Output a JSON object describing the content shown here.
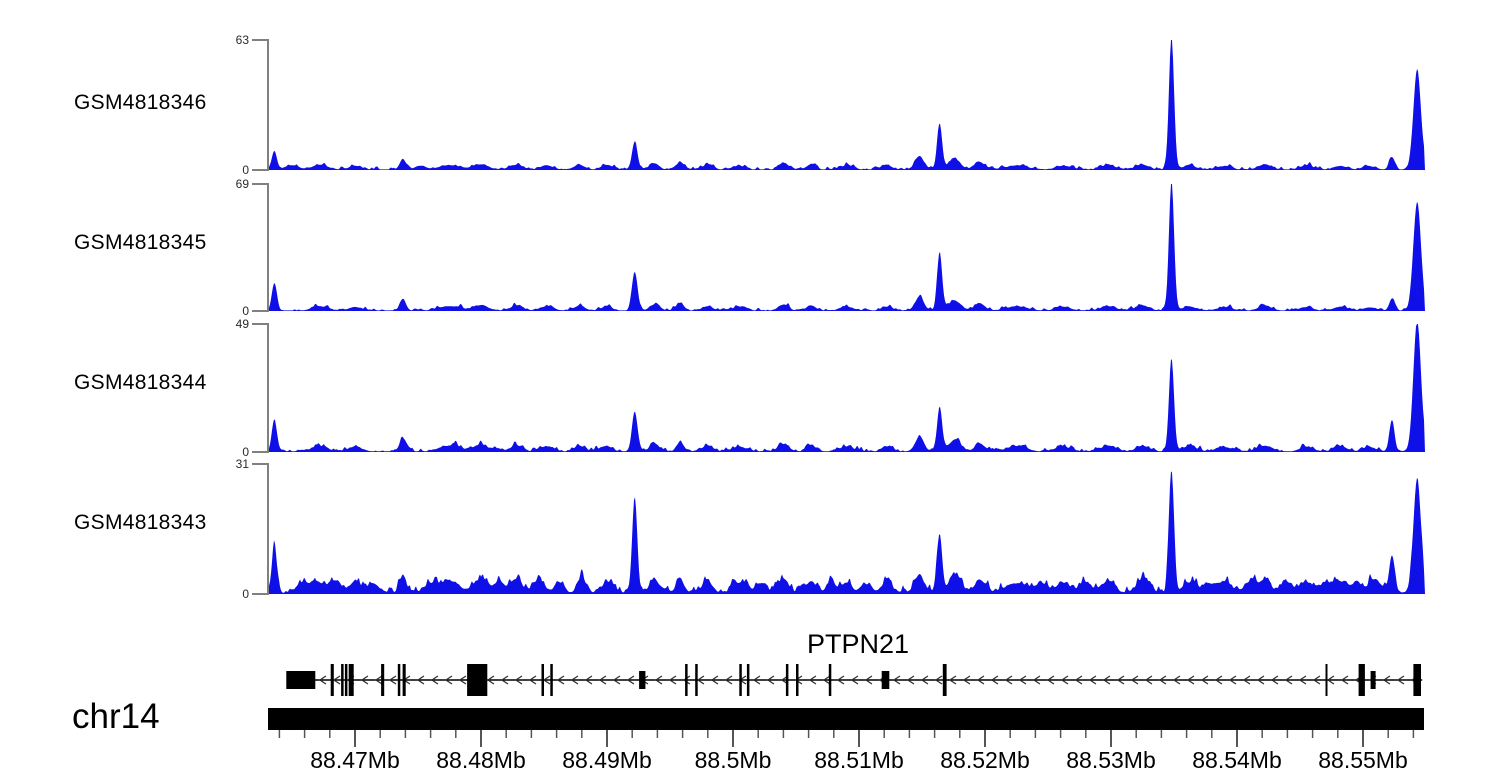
{
  "figure": {
    "chromosome_label": "chr14",
    "gene_label": "PTPN21"
  },
  "chart_data": {
    "type": "area",
    "x_units": "Mb",
    "x_range": [
      88.4631,
      88.5549
    ],
    "grid": false,
    "legend": "none",
    "signal_color": "#0f0fe8",
    "axis_color": "#808080",
    "axis": {
      "major_ticks": [
        {
          "pos": 88.47,
          "label": "88.47Mb"
        },
        {
          "pos": 88.48,
          "label": "88.48Mb"
        },
        {
          "pos": 88.49,
          "label": "88.49Mb"
        },
        {
          "pos": 88.5,
          "label": "88.5Mb"
        },
        {
          "pos": 88.51,
          "label": "88.51Mb"
        },
        {
          "pos": 88.52,
          "label": "88.52Mb"
        },
        {
          "pos": 88.53,
          "label": "88.53Mb"
        },
        {
          "pos": 88.54,
          "label": "88.54Mb"
        },
        {
          "pos": 88.55,
          "label": "88.55Mb"
        }
      ],
      "minor_tick_step": 0.002,
      "minor_tick_start": 88.464,
      "minor_tick_end": 88.554
    },
    "tracks": [
      {
        "name": "GSM4818346",
        "ymax": 63,
        "ymin": 0,
        "seed": 11,
        "noise": 0.9,
        "peaks": [
          [
            88.4636,
            9,
            0.2
          ],
          [
            88.465,
            2,
            0.5
          ],
          [
            88.4672,
            2.2,
            0.6
          ],
          [
            88.47,
            1.8,
            0.5
          ],
          [
            88.4738,
            5,
            0.25
          ],
          [
            88.4752,
            1.8,
            0.4
          ],
          [
            88.4775,
            2.2,
            0.8
          ],
          [
            88.48,
            2.6,
            0.6
          ],
          [
            88.4828,
            2.2,
            0.5
          ],
          [
            88.4852,
            2,
            0.5
          ],
          [
            88.4878,
            2.4,
            0.4
          ],
          [
            88.49,
            2.2,
            0.4
          ],
          [
            88.4922,
            13,
            0.22
          ],
          [
            88.4938,
            3,
            0.35
          ],
          [
            88.4958,
            3.6,
            0.3
          ],
          [
            88.498,
            2.2,
            0.4
          ],
          [
            88.5005,
            1.8,
            0.5
          ],
          [
            88.504,
            3,
            0.4
          ],
          [
            88.5062,
            2.6,
            0.35
          ],
          [
            88.509,
            1.8,
            0.5
          ],
          [
            88.5122,
            2,
            0.4
          ],
          [
            88.5148,
            6.5,
            0.35
          ],
          [
            88.5164,
            22,
            0.2
          ],
          [
            88.5176,
            5,
            0.45
          ],
          [
            88.5196,
            3.5,
            0.4
          ],
          [
            88.5225,
            2,
            0.8
          ],
          [
            88.5262,
            1.8,
            0.6
          ],
          [
            88.5298,
            2,
            0.6
          ],
          [
            88.5325,
            2.4,
            0.5
          ],
          [
            88.5348,
            64,
            0.2
          ],
          [
            88.5362,
            2,
            0.5
          ],
          [
            88.539,
            1.6,
            0.6
          ],
          [
            88.5422,
            2.4,
            0.5
          ],
          [
            88.5455,
            1.8,
            0.5
          ],
          [
            88.5482,
            1.8,
            0.5
          ],
          [
            88.5505,
            1.6,
            0.5
          ],
          [
            88.5523,
            6,
            0.22
          ],
          [
            88.5543,
            48,
            0.3
          ]
        ]
      },
      {
        "name": "GSM4818345",
        "ymax": 69,
        "ymin": 0,
        "seed": 22,
        "noise": 1.0,
        "peaks": [
          [
            88.4636,
            15,
            0.2
          ],
          [
            88.4672,
            2.4,
            0.6
          ],
          [
            88.47,
            2,
            0.5
          ],
          [
            88.4738,
            6,
            0.25
          ],
          [
            88.4775,
            2.4,
            0.8
          ],
          [
            88.48,
            2.8,
            0.6
          ],
          [
            88.4828,
            2.4,
            0.5
          ],
          [
            88.4852,
            2.2,
            0.5
          ],
          [
            88.4878,
            2.6,
            0.4
          ],
          [
            88.49,
            2.4,
            0.4
          ],
          [
            88.4922,
            21,
            0.22
          ],
          [
            88.4938,
            3.4,
            0.35
          ],
          [
            88.4958,
            4,
            0.3
          ],
          [
            88.498,
            2.4,
            0.4
          ],
          [
            88.5005,
            2,
            0.5
          ],
          [
            88.504,
            3.2,
            0.4
          ],
          [
            88.5062,
            2.8,
            0.35
          ],
          [
            88.509,
            2,
            0.5
          ],
          [
            88.5122,
            2.2,
            0.4
          ],
          [
            88.5148,
            7,
            0.35
          ],
          [
            88.5164,
            31,
            0.2
          ],
          [
            88.5176,
            5.5,
            0.45
          ],
          [
            88.5196,
            3.8,
            0.4
          ],
          [
            88.5225,
            2.2,
            0.8
          ],
          [
            88.5262,
            2,
            0.6
          ],
          [
            88.5298,
            2.2,
            0.6
          ],
          [
            88.5325,
            2.6,
            0.5
          ],
          [
            88.5348,
            70,
            0.2
          ],
          [
            88.5362,
            2.2,
            0.5
          ],
          [
            88.539,
            1.8,
            0.6
          ],
          [
            88.5422,
            2.6,
            0.5
          ],
          [
            88.5455,
            2,
            0.5
          ],
          [
            88.5482,
            2,
            0.5
          ],
          [
            88.5505,
            1.8,
            0.5
          ],
          [
            88.5523,
            6.5,
            0.22
          ],
          [
            88.5543,
            59,
            0.3
          ]
        ]
      },
      {
        "name": "GSM4818344",
        "ymax": 49,
        "ymin": 0,
        "seed": 33,
        "noise": 0.9,
        "peaks": [
          [
            88.4636,
            12,
            0.2
          ],
          [
            88.4672,
            2,
            0.6
          ],
          [
            88.47,
            1.8,
            0.5
          ],
          [
            88.4738,
            5,
            0.25
          ],
          [
            88.4775,
            2.2,
            0.8
          ],
          [
            88.48,
            2.4,
            0.6
          ],
          [
            88.4828,
            2.2,
            0.5
          ],
          [
            88.4852,
            2,
            0.5
          ],
          [
            88.4878,
            2.2,
            0.4
          ],
          [
            88.49,
            2,
            0.4
          ],
          [
            88.4922,
            15,
            0.22
          ],
          [
            88.4938,
            3,
            0.35
          ],
          [
            88.4958,
            3.4,
            0.3
          ],
          [
            88.498,
            2.2,
            0.4
          ],
          [
            88.5005,
            1.8,
            0.5
          ],
          [
            88.504,
            2.8,
            0.4
          ],
          [
            88.5062,
            2.4,
            0.35
          ],
          [
            88.509,
            1.8,
            0.5
          ],
          [
            88.5122,
            2,
            0.4
          ],
          [
            88.5148,
            5.5,
            0.35
          ],
          [
            88.5164,
            17,
            0.2
          ],
          [
            88.5176,
            4.5,
            0.45
          ],
          [
            88.5196,
            3,
            0.4
          ],
          [
            88.5225,
            2,
            0.8
          ],
          [
            88.5262,
            1.8,
            0.6
          ],
          [
            88.5298,
            2,
            0.6
          ],
          [
            88.5325,
            2.2,
            0.5
          ],
          [
            88.5348,
            35,
            0.2
          ],
          [
            88.5362,
            2,
            0.5
          ],
          [
            88.539,
            1.6,
            0.6
          ],
          [
            88.5422,
            2.2,
            0.5
          ],
          [
            88.5455,
            1.8,
            0.5
          ],
          [
            88.5482,
            1.8,
            0.5
          ],
          [
            88.5505,
            1.6,
            0.5
          ],
          [
            88.5523,
            12,
            0.2
          ],
          [
            88.5543,
            50,
            0.3
          ]
        ]
      },
      {
        "name": "GSM4818343",
        "ymax": 31,
        "ymin": 0,
        "seed": 44,
        "noise": 1.3,
        "peaks": [
          [
            88.4636,
            11,
            0.2
          ],
          [
            88.466,
            2.2,
            0.5
          ],
          [
            88.4672,
            2.4,
            0.5
          ],
          [
            88.4685,
            2.6,
            0.4
          ],
          [
            88.47,
            2.8,
            0.4
          ],
          [
            88.4715,
            2.2,
            0.4
          ],
          [
            88.4738,
            4,
            0.25
          ],
          [
            88.476,
            2,
            0.5
          ],
          [
            88.4775,
            2.6,
            0.7
          ],
          [
            88.48,
            3,
            0.6
          ],
          [
            88.4815,
            2.6,
            0.4
          ],
          [
            88.4828,
            3.4,
            0.4
          ],
          [
            88.4845,
            2.8,
            0.4
          ],
          [
            88.4862,
            2.4,
            0.4
          ],
          [
            88.488,
            3.2,
            0.35
          ],
          [
            88.49,
            2.6,
            0.4
          ],
          [
            88.4922,
            23,
            0.2
          ],
          [
            88.4938,
            3.2,
            0.35
          ],
          [
            88.4958,
            3.4,
            0.3
          ],
          [
            88.498,
            2.6,
            0.4
          ],
          [
            88.5005,
            2.4,
            0.5
          ],
          [
            88.5022,
            2.2,
            0.4
          ],
          [
            88.504,
            3.2,
            0.4
          ],
          [
            88.5062,
            2.8,
            0.35
          ],
          [
            88.5078,
            2.2,
            0.4
          ],
          [
            88.509,
            2.4,
            0.4
          ],
          [
            88.5105,
            2.2,
            0.4
          ],
          [
            88.5122,
            2.6,
            0.4
          ],
          [
            88.5148,
            4.5,
            0.35
          ],
          [
            88.5164,
            14,
            0.2
          ],
          [
            88.5176,
            4,
            0.45
          ],
          [
            88.5196,
            3.2,
            0.4
          ],
          [
            88.5225,
            2.4,
            0.8
          ],
          [
            88.5245,
            2.2,
            0.5
          ],
          [
            88.5262,
            2.4,
            0.5
          ],
          [
            88.528,
            2.2,
            0.5
          ],
          [
            88.5298,
            2.6,
            0.5
          ],
          [
            88.5325,
            2.8,
            0.5
          ],
          [
            88.5348,
            29,
            0.2
          ],
          [
            88.5362,
            2.4,
            0.5
          ],
          [
            88.5378,
            2.2,
            0.5
          ],
          [
            88.539,
            2.4,
            0.5
          ],
          [
            88.541,
            2.6,
            0.45
          ],
          [
            88.5422,
            3,
            0.45
          ],
          [
            88.544,
            2.4,
            0.45
          ],
          [
            88.5455,
            2.6,
            0.45
          ],
          [
            88.547,
            2.2,
            0.45
          ],
          [
            88.5482,
            2.6,
            0.45
          ],
          [
            88.5495,
            2.4,
            0.45
          ],
          [
            88.551,
            3.4,
            0.4
          ],
          [
            88.5523,
            9,
            0.22
          ],
          [
            88.5543,
            27,
            0.3
          ]
        ]
      }
    ],
    "gene": {
      "name": "PTPN21",
      "chromosome": "chr14",
      "strand": "-",
      "span": [
        88.4646,
        88.5547
      ],
      "exons": [
        {
          "m": 88.4657,
          "w": 2.3,
          "h": "short"
        },
        {
          "m": 88.4682,
          "w": 0.25,
          "h": "tall"
        },
        {
          "m": 88.469,
          "w": 0.2,
          "h": "tall"
        },
        {
          "m": 88.4693,
          "w": 0.2,
          "h": "tall"
        },
        {
          "m": 88.4697,
          "w": 0.4,
          "h": "tall"
        },
        {
          "m": 88.4722,
          "w": 0.25,
          "h": "tall"
        },
        {
          "m": 88.4735,
          "w": 0.2,
          "h": "tall"
        },
        {
          "m": 88.4739,
          "w": 0.25,
          "h": "tall"
        },
        {
          "m": 88.4797,
          "w": 1.6,
          "h": "tall"
        },
        {
          "m": 88.4849,
          "w": 0.2,
          "h": "tall"
        },
        {
          "m": 88.4856,
          "w": 0.2,
          "h": "tall"
        },
        {
          "m": 88.4928,
          "w": 0.5,
          "h": "short"
        },
        {
          "m": 88.4963,
          "w": 0.2,
          "h": "tall"
        },
        {
          "m": 88.4971,
          "w": 0.2,
          "h": "tall"
        },
        {
          "m": 88.5006,
          "w": 0.2,
          "h": "tall"
        },
        {
          "m": 88.5012,
          "w": 0.2,
          "h": "tall"
        },
        {
          "m": 88.5043,
          "w": 0.2,
          "h": "tall"
        },
        {
          "m": 88.5051,
          "w": 0.2,
          "h": "tall"
        },
        {
          "m": 88.5077,
          "w": 0.2,
          "h": "tall"
        },
        {
          "m": 88.5121,
          "w": 0.6,
          "h": "short"
        },
        {
          "m": 88.5168,
          "w": 0.3,
          "h": "tall"
        },
        {
          "m": 88.5471,
          "w": 0.12,
          "h": "tall"
        },
        {
          "m": 88.5499,
          "w": 0.5,
          "h": "tall"
        },
        {
          "m": 88.5508,
          "w": 0.4,
          "h": "short"
        },
        {
          "m": 88.5543,
          "w": 0.6,
          "h": "tall"
        }
      ]
    }
  }
}
